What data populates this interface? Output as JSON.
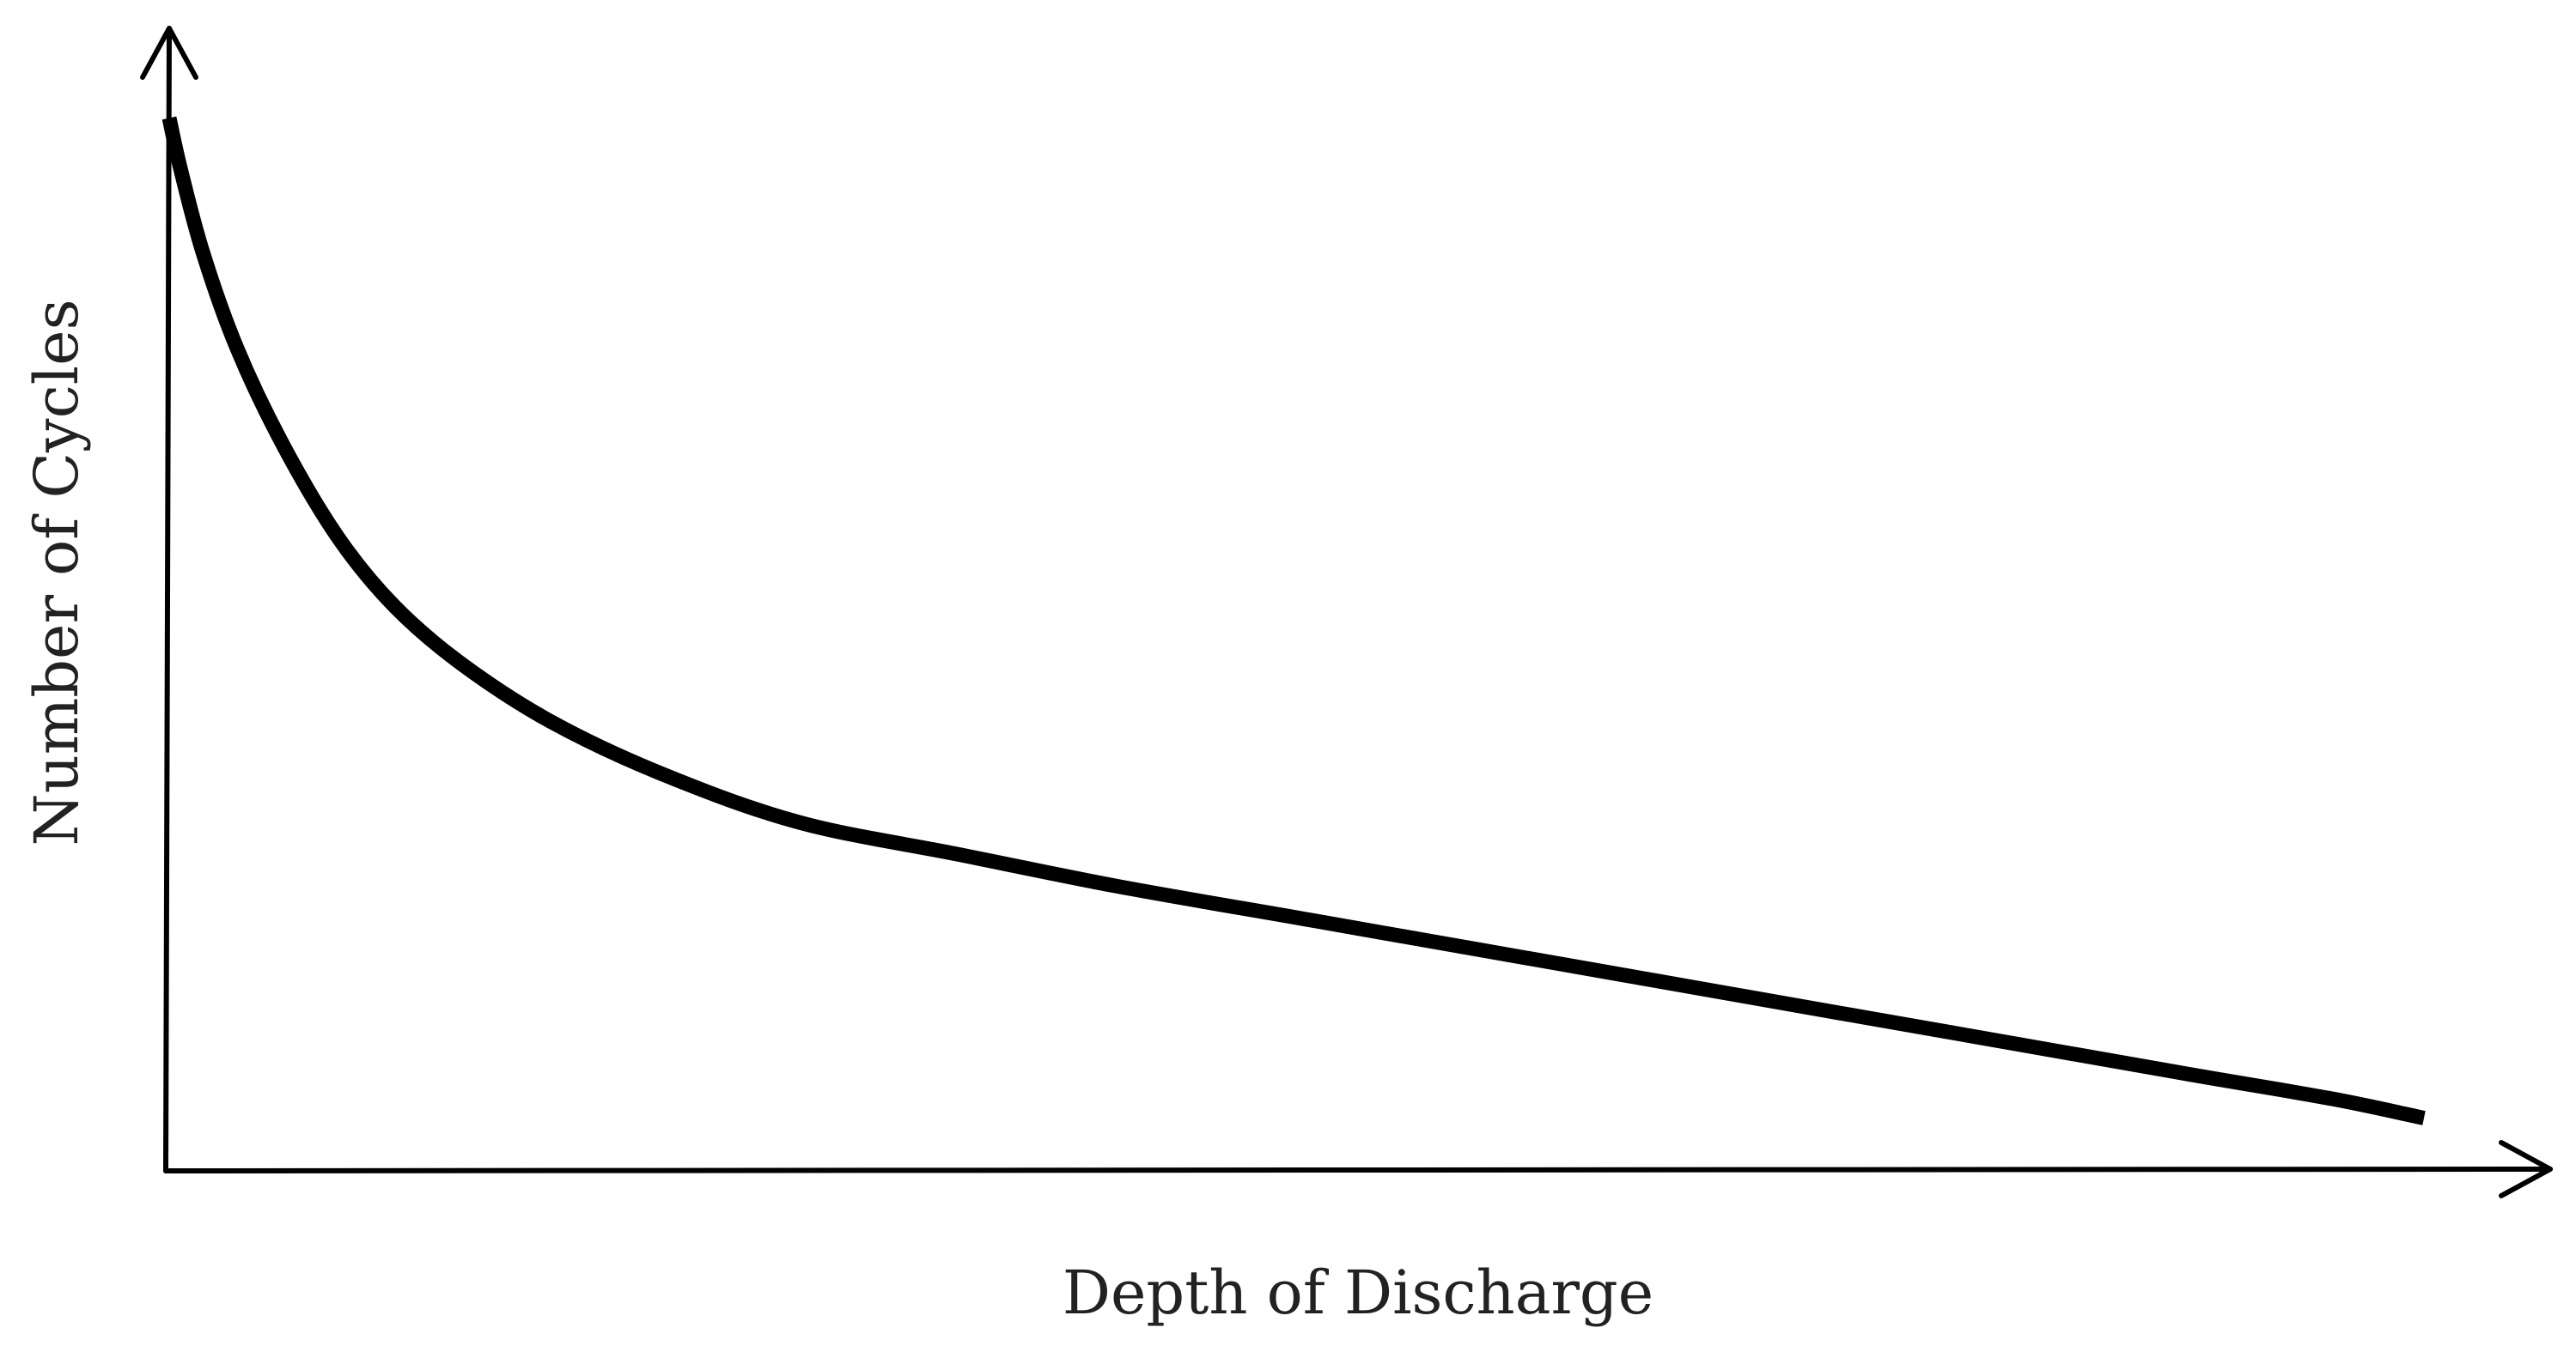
{
  "chart_data": {
    "type": "line",
    "title": "",
    "xlabel": "Depth of Discharge",
    "ylabel": "Number of Cycles",
    "xlim": [
      0,
      1
    ],
    "ylim": [
      0,
      1
    ],
    "grid": false,
    "ticks": false,
    "series": [
      {
        "x": [
          0.0,
          0.005,
          0.015,
          0.03,
          0.05,
          0.075,
          0.1,
          0.13,
          0.17,
          0.22,
          0.28,
          0.35,
          0.42,
          0.5,
          0.58,
          0.66,
          0.74,
          0.82,
          0.9,
          0.96,
          1.0
        ],
        "values": [
          0.998,
          0.95,
          0.87,
          0.78,
          0.69,
          0.6,
          0.535,
          0.48,
          0.425,
          0.375,
          0.33,
          0.3,
          0.27,
          0.24,
          0.21,
          0.18,
          0.15,
          0.12,
          0.09,
          0.068,
          0.05
        ]
      }
    ]
  }
}
